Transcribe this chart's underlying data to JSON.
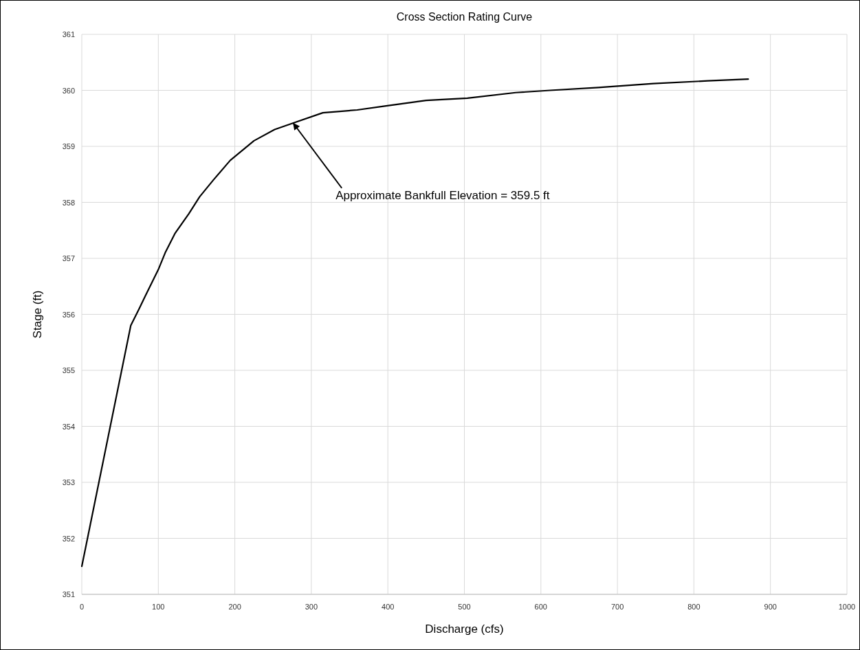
{
  "chart_data": {
    "type": "line",
    "title": "Cross Section Rating Curve",
    "xlabel": "Discharge (cfs)",
    "ylabel": "Stage (ft)",
    "xlim": [
      0,
      1000
    ],
    "xticks": [
      0,
      100,
      200,
      300,
      400,
      500,
      600,
      700,
      800,
      900,
      1000
    ],
    "ylim": [
      351,
      361
    ],
    "yticks": [
      351,
      352,
      353,
      354,
      355,
      356,
      357,
      358,
      359,
      360,
      361
    ],
    "grid": true,
    "marker": "none",
    "line_style": "solid",
    "series": [
      {
        "color": "#000000",
        "x": [
          0,
          64,
          75,
          82,
          100,
          109,
          122,
          140,
          154,
          172,
          194,
          225,
          252,
          279,
          315,
          360,
          396,
          450,
          504,
          567,
          612,
          675,
          747,
          818,
          871
        ],
        "values": [
          351.5,
          355.8,
          356.1,
          356.3,
          356.8,
          357.1,
          357.45,
          357.8,
          358.1,
          358.4,
          358.75,
          359.1,
          359.3,
          359.43,
          359.6,
          359.65,
          359.72,
          359.82,
          359.86,
          359.96,
          360.0,
          360.05,
          360.12,
          360.17,
          360.2
        ]
      }
    ],
    "annotations": [
      {
        "text": "Approximate Bankfull Elevation = 359.5 ft",
        "x": 276,
        "y": 359.42
      }
    ]
  }
}
